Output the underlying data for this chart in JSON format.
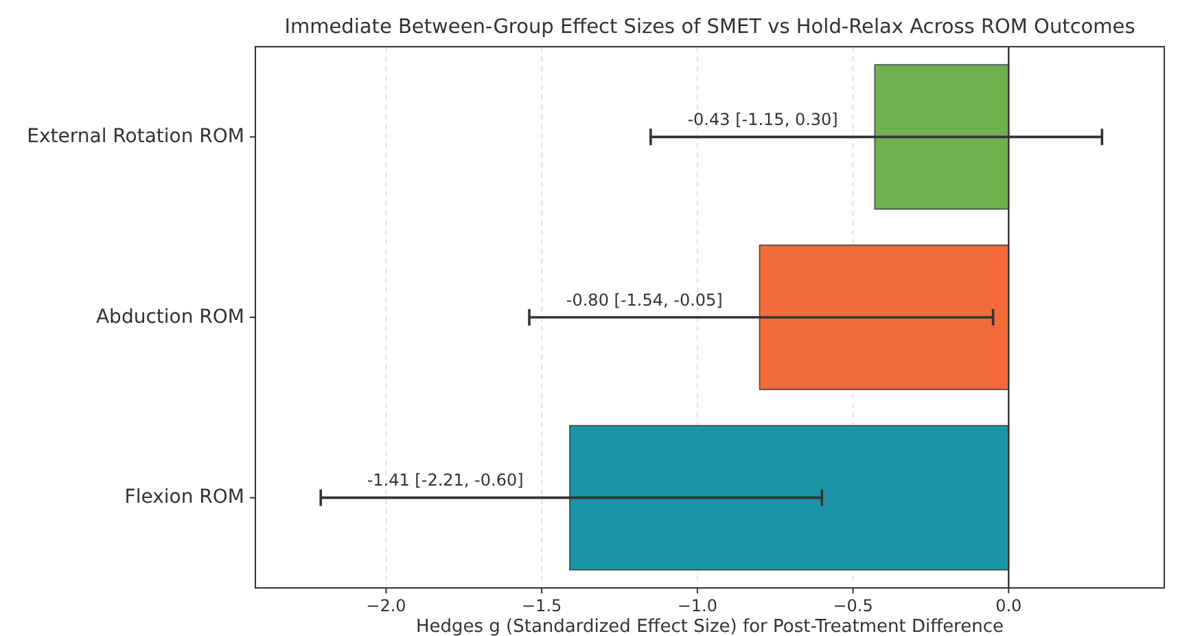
{
  "chart_data": {
    "type": "bar",
    "orientation": "horizontal",
    "title": "Immediate Between-Group Effect Sizes of SMET vs Hold-Relax Across ROM Outcomes",
    "xlabel": "Hedges g (Standardized Effect Size) for Post-Treatment Difference",
    "categories": [
      "External Rotation ROM",
      "Abduction ROM",
      "Flexion ROM"
    ],
    "values": [
      -0.43,
      -0.8,
      -1.41
    ],
    "colors": [
      "#70b04f",
      "#f26b38",
      "#1a94a6"
    ],
    "errors": [
      [
        -1.15,
        0.3
      ],
      [
        -1.54,
        -0.05
      ],
      [
        -2.21,
        -0.6
      ]
    ],
    "value_labels": [
      "-0.43 [-1.15, 0.30]",
      "-0.80 [-1.54, -0.05]",
      "-1.41 [-2.21, -0.60]"
    ],
    "xlim": [
      -2.42,
      0.5
    ],
    "xticks": [
      {
        "value": -2,
        "label": "−2.0"
      },
      {
        "value": -1.5,
        "label": "−1.5"
      },
      {
        "value": -1,
        "label": "−1.0"
      },
      {
        "value": -0.5,
        "label": "−0.5"
      },
      {
        "value": 0,
        "label": "0.0"
      }
    ],
    "grid": "x",
    "ref_lines": [
      {
        "axis": "x",
        "value": 0,
        "color": "#333333"
      }
    ]
  }
}
